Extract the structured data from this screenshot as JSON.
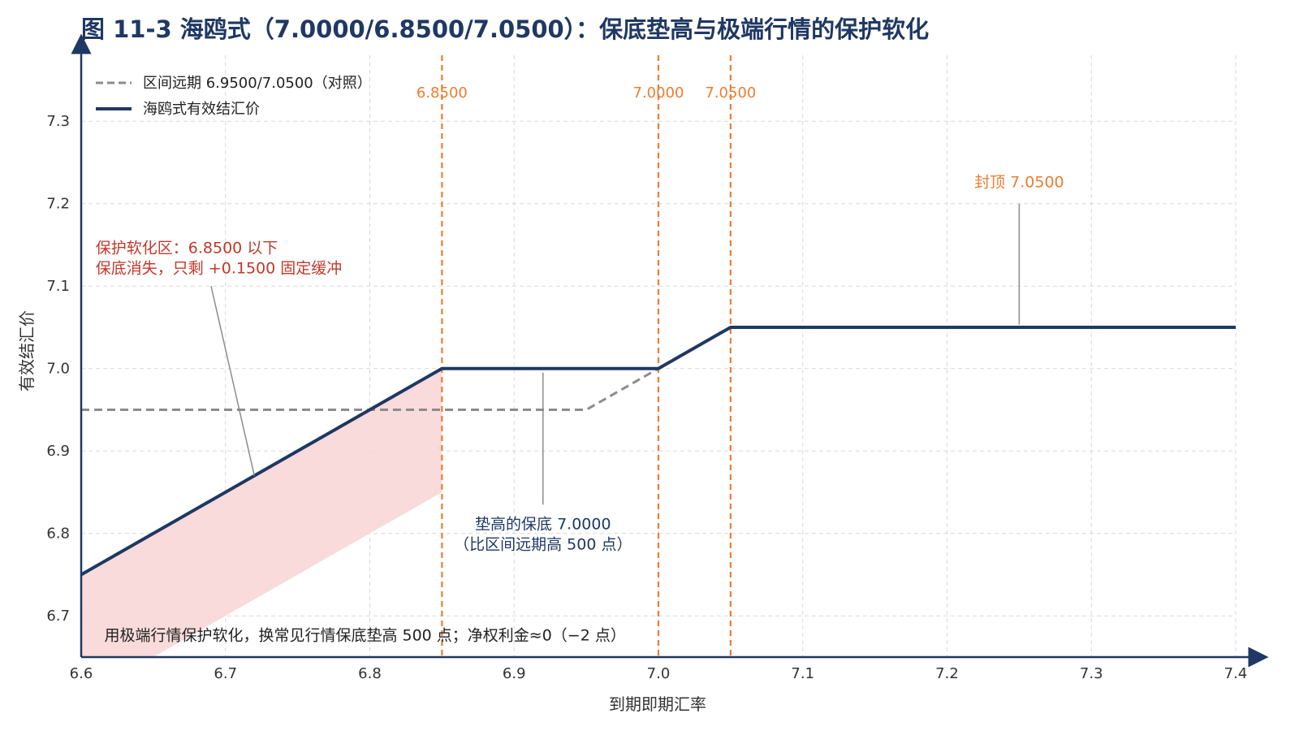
{
  "chart_data": {
    "type": "line",
    "title": "图 11-3 海鸥式（7.0000/6.8500/7.0500）：保底垫高与极端行情的保护软化",
    "xlabel": "到期即期汇率",
    "ylabel": "有效结汇价",
    "xlim": [
      6.6,
      7.4
    ],
    "ylim": [
      6.65,
      7.38
    ],
    "xticks": [
      "6.6",
      "6.7",
      "6.8",
      "6.9",
      "7.0",
      "7.1",
      "7.2",
      "7.3",
      "7.4"
    ],
    "yticks": [
      "6.7",
      "6.8",
      "6.9",
      "7.0",
      "7.1",
      "7.2",
      "7.3"
    ],
    "grid": true,
    "legend_position": "top-left",
    "series": [
      {
        "name": "区间远期 6.9500/7.0500（对照）",
        "style": "dashed",
        "color": "#8c8c8c",
        "x": [
          6.6,
          6.95,
          7.0
        ],
        "y": [
          6.95,
          6.95,
          7.0
        ]
      },
      {
        "name": "海鸥式有效结汇价",
        "style": "solid",
        "color": "#1f3864",
        "x": [
          6.6,
          6.85,
          7.0,
          7.05,
          7.4
        ],
        "y": [
          6.75,
          7.0,
          7.0,
          7.05,
          7.05
        ]
      }
    ],
    "shaded_region": {
      "color": "#f8d7d7",
      "x": [
        6.6,
        6.85
      ],
      "upper": [
        6.75,
        7.0
      ],
      "lower": [
        6.6,
        6.85
      ]
    },
    "vertical_lines": [
      {
        "x": 6.85,
        "label": "6.8500",
        "color": "#ed7d31"
      },
      {
        "x": 7.0,
        "label": "7.0000",
        "color": "#ed7d31"
      },
      {
        "x": 7.05,
        "label": "7.0500",
        "color": "#ed7d31"
      }
    ],
    "annotations": [
      {
        "id": "soft",
        "lines": [
          "保护软化区：6.8500 以下",
          "保底消失，只剩 +0.1500 固定缓冲"
        ],
        "color": "#c0392b",
        "text_at": [
          6.61,
          7.14
        ],
        "pointer_from": [
          6.69,
          7.1
        ],
        "pointer_to": [
          6.72,
          6.87
        ]
      },
      {
        "id": "floor",
        "lines": [
          "垫高的保底 7.0000",
          "（比区间远期高 500 点）"
        ],
        "color": "#1f3864",
        "text_at": [
          6.92,
          6.805
        ],
        "pointer_from": [
          6.92,
          6.835
        ],
        "pointer_to": [
          6.92,
          6.995
        ]
      },
      {
        "id": "cap",
        "lines": [
          "封顶 7.0500"
        ],
        "color": "#ed7d31",
        "text_at": [
          7.25,
          7.22
        ],
        "pointer_from": [
          7.25,
          7.2
        ],
        "pointer_to": [
          7.25,
          7.053
        ]
      },
      {
        "id": "footnote",
        "lines": [
          "用极端行情保护软化，换常见行情保底垫高 500 点；净权利金≈0（−2 点）"
        ],
        "color": "#222222",
        "text_at": [
          6.616,
          6.67
        ]
      }
    ]
  }
}
